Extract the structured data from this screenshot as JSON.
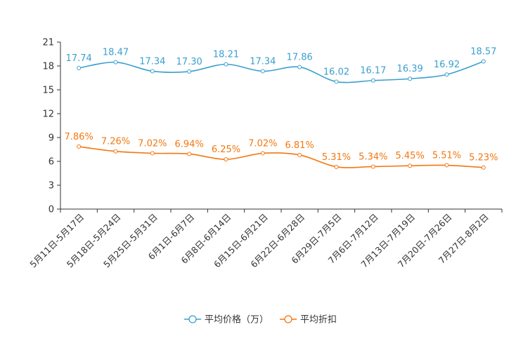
{
  "chart_data": {
    "type": "line",
    "categories": [
      "5月11日-5月17日",
      "5月18日-5月24日",
      "5月25日-5月31日",
      "6月1日-6月7日",
      "6月8日-6月14日",
      "6月15日-6月21日",
      "6月22日-6月28日",
      "6月29日-7月5日",
      "7月6日-7月12日",
      "7月13日-7月19日",
      "7月20日-7月26日",
      "7月27日-8月2日"
    ],
    "ylim": [
      0,
      21
    ],
    "yticks": [
      "0",
      "3",
      "6",
      "9",
      "12",
      "15",
      "18",
      "21"
    ],
    "grid": false,
    "legend_position": "bottom-center",
    "series": [
      {
        "name": "平均价格（万）",
        "color": "#3b9fcf",
        "values": [
          17.74,
          18.47,
          17.34,
          17.3,
          18.21,
          17.34,
          17.86,
          16.02,
          16.17,
          16.39,
          16.92,
          18.57
        ],
        "labels": [
          "17.74",
          "18.47",
          "17.34",
          "17.30",
          "18.21",
          "17.34",
          "17.86",
          "16.02",
          "16.17",
          "16.39",
          "16.92",
          "18.57"
        ]
      },
      {
        "name": "平均折扣",
        "color": "#f4770f",
        "values": [
          7.86,
          7.26,
          7.02,
          6.94,
          6.25,
          7.02,
          6.81,
          5.31,
          5.34,
          5.45,
          5.51,
          5.23
        ],
        "labels": [
          "7.86%",
          "7.26%",
          "7.02%",
          "6.94%",
          "6.25%",
          "7.02%",
          "6.81%",
          "5.31%",
          "5.34%",
          "5.45%",
          "5.51%",
          "5.23%"
        ]
      }
    ]
  }
}
